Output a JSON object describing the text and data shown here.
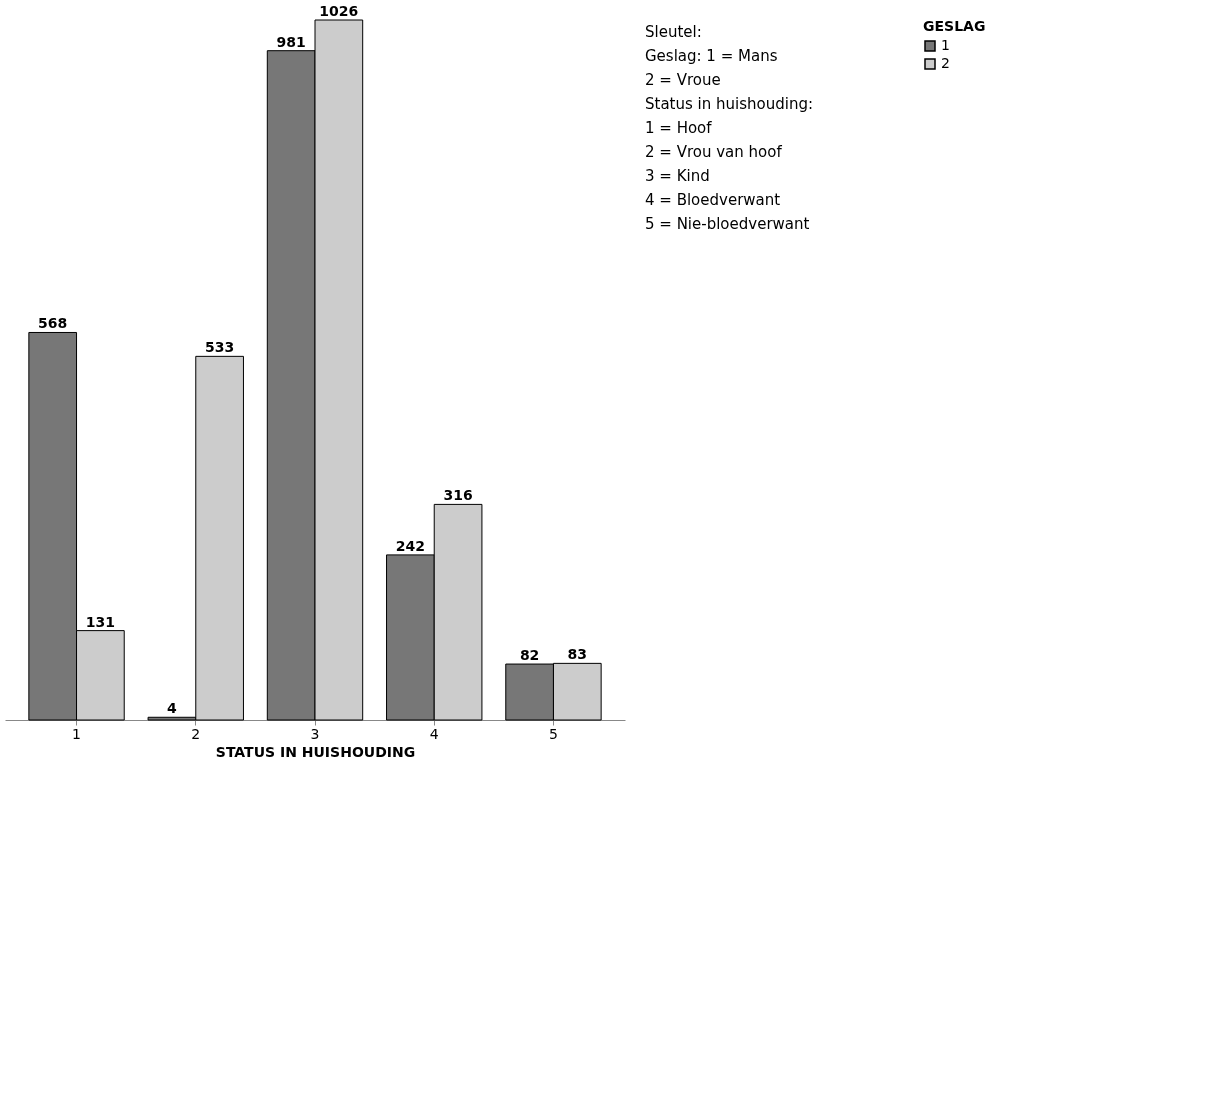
{
  "chart_data": {
    "type": "bar",
    "xlabel": "STATUS IN HUISHOUDING",
    "legend_title": "GESLAG",
    "categories": [
      "1",
      "2",
      "3",
      "4",
      "5"
    ],
    "series": [
      {
        "name": "1",
        "color": "#777777",
        "values": [
          568,
          4,
          981,
          242,
          82
        ]
      },
      {
        "name": "2",
        "color": "#cccccc",
        "values": [
          131,
          533,
          1026,
          316,
          83
        ]
      }
    ],
    "data_labels": true,
    "legend": "right",
    "grid": false,
    "annotations": [
      "Sleutel:",
      "Geslag:     1 = Mans",
      "2 = Vroue",
      "Status in huishouding:",
      "1 = Hoof",
      "2 = Vrou van hoof",
      "3 = Kind",
      "4 = Bloedverwant",
      "5 = Nie-bloedverwant"
    ]
  }
}
